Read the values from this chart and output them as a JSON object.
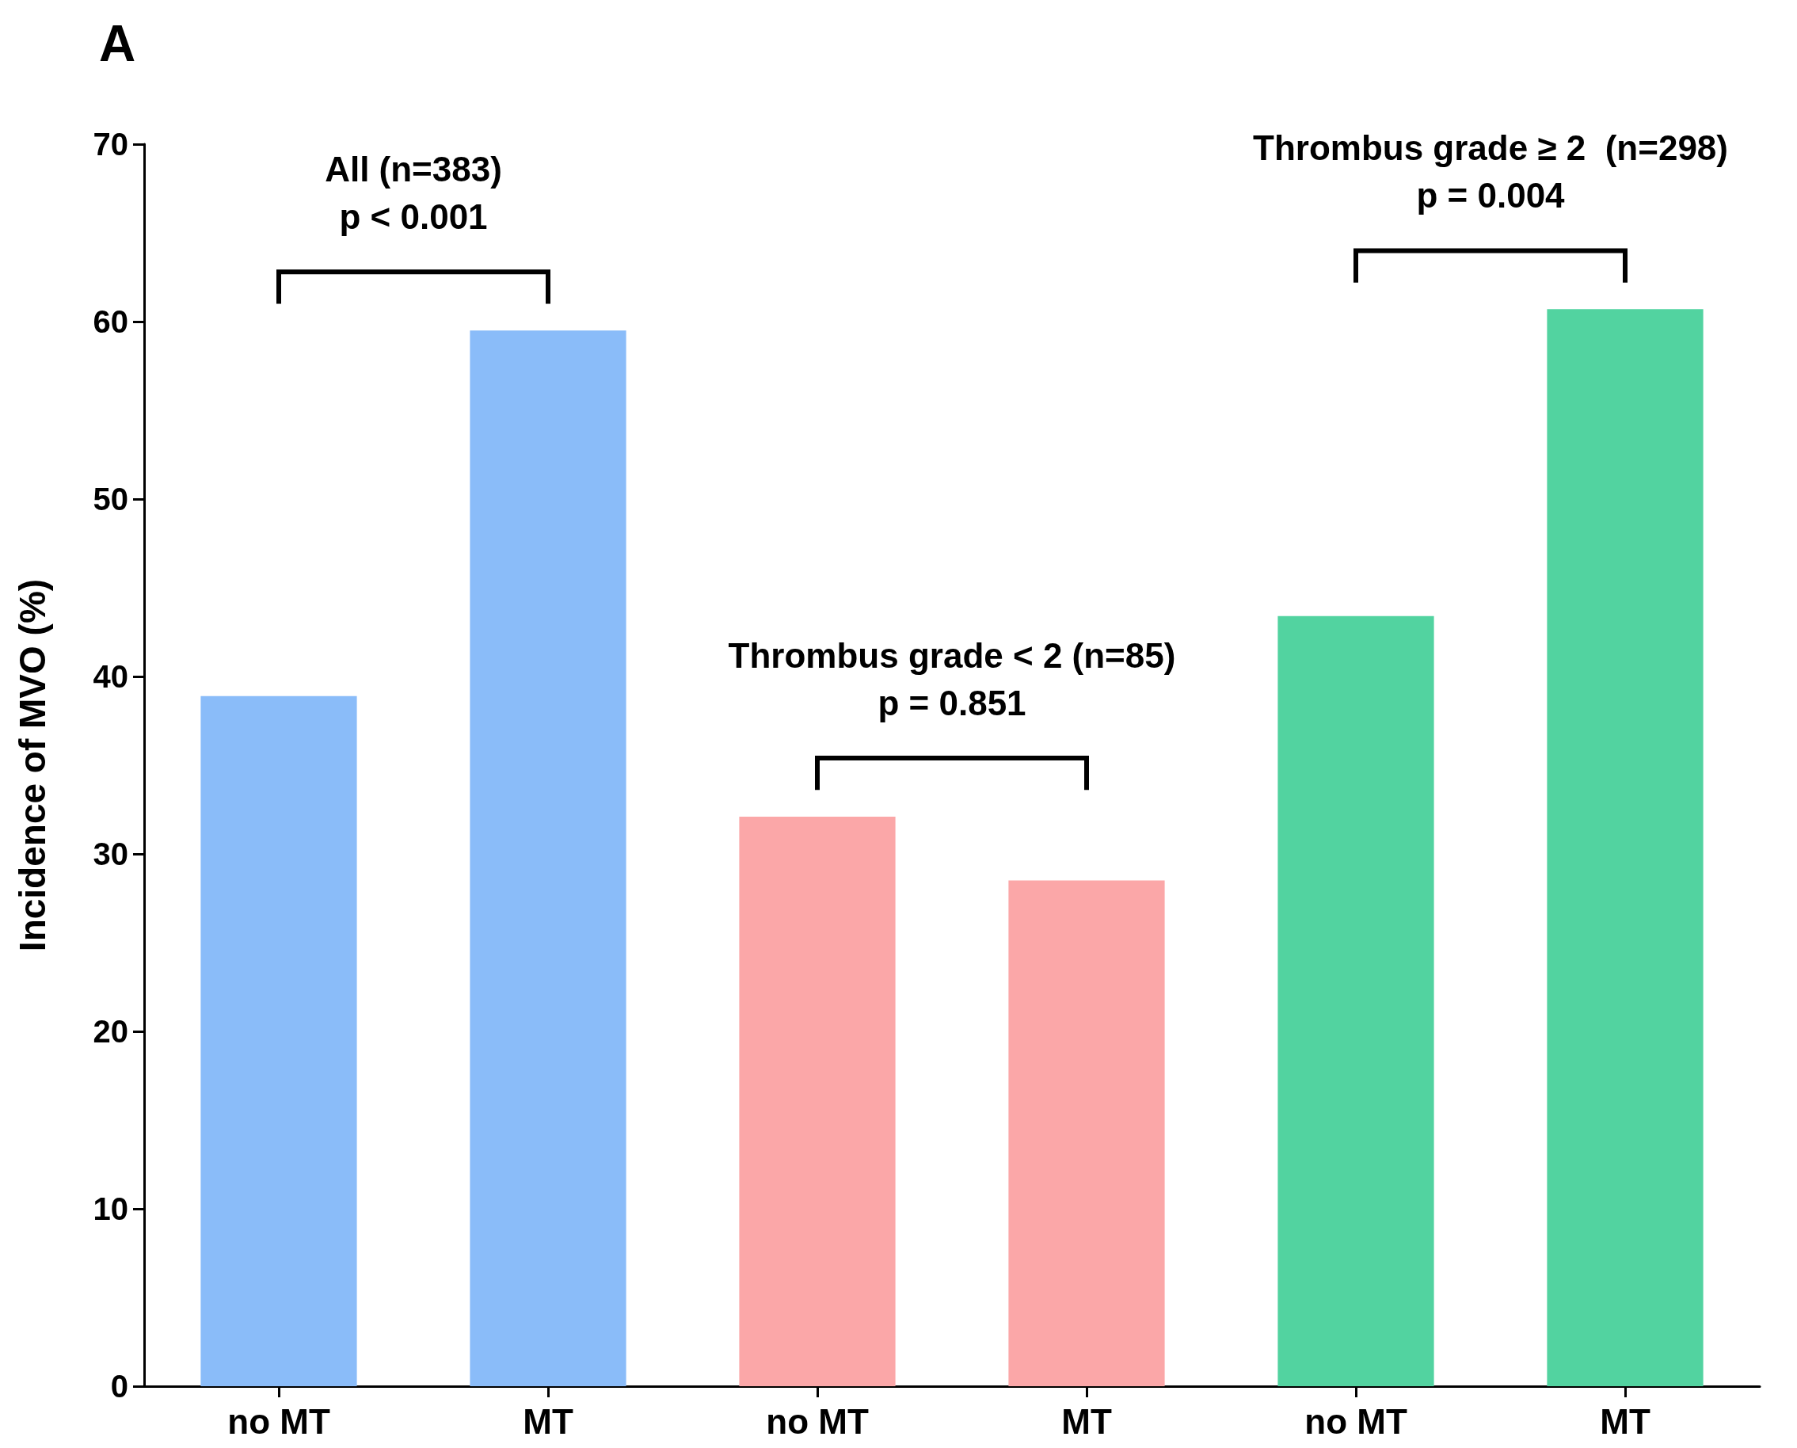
{
  "chart_data": {
    "type": "bar",
    "title": "A",
    "ylabel": "Incidence of MVO (%)",
    "categories": [
      "no MT",
      "MT",
      "no MT",
      "MT",
      "no MT",
      "MT"
    ],
    "values": [
      38.9,
      59.5,
      32.1,
      28.5,
      43.4,
      60.7
    ],
    "colors": [
      "#8abcf9",
      "#8abcf9",
      "#fba7a8",
      "#fba7a8",
      "#52d3a0",
      "#52d3a0"
    ],
    "ylim": [
      0,
      70
    ],
    "yticks": [
      0,
      10,
      20,
      30,
      40,
      50,
      60,
      70
    ],
    "grid": false,
    "annotations": [
      "All (n=383)\np < 0.001",
      "Thrombus grade < 2 (n=85)\np = 0.851",
      "Thrombus grade ≥ 2  (n=298)\np = 0.004"
    ]
  }
}
